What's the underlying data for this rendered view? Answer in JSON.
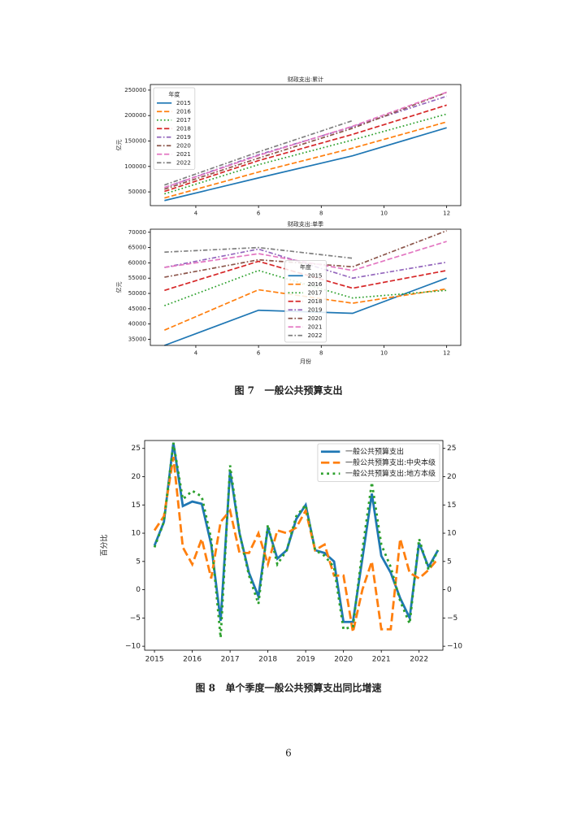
{
  "chart_data": [
    {
      "type": "line",
      "title": "财政支出:累计",
      "ylabel": "亿元",
      "legend_title": "年度",
      "legend": "upper left",
      "x": [
        3,
        6,
        9,
        12
      ],
      "xlim": [
        2.55,
        12.45
      ],
      "xticks": [
        4,
        6,
        8,
        10,
        12
      ],
      "ylim": [
        23000,
        261000
      ],
      "yticks": [
        50000,
        100000,
        150000,
        200000,
        250000
      ],
      "series": [
        {
          "name": "2015",
          "color": "#1f77b4",
          "linestyle": "solid",
          "values": [
            33000,
            77500,
            121000,
            176000
          ]
        },
        {
          "name": "2016",
          "color": "#ff7f0e",
          "linestyle": "dashed",
          "values": [
            38000,
            89000,
            136000,
            187500
          ]
        },
        {
          "name": "2017",
          "color": "#2ca02c",
          "linestyle": "dotted",
          "values": [
            46000,
            103500,
            152000,
            203000
          ]
        },
        {
          "name": "2018",
          "color": "#d62728",
          "linestyle": "dashed",
          "values": [
            51000,
            111500,
            163000,
            220500
          ]
        },
        {
          "name": "2019",
          "color": "#9467bd",
          "linestyle": "dashdot",
          "values": [
            58500,
            123000,
            178000,
            238000
          ]
        },
        {
          "name": "2020",
          "color": "#8c564b",
          "linestyle": "dashdot",
          "values": [
            55300,
            116300,
            175000,
            245500
          ]
        },
        {
          "name": "2021",
          "color": "#e377c2",
          "linestyle": "dashed",
          "values": [
            58500,
            121500,
            179000,
            246000
          ]
        },
        {
          "name": "2022",
          "color": "#7f7f7f",
          "linestyle": "dashdot",
          "values": [
            63500,
            128500,
            190000,
            null
          ]
        }
      ]
    },
    {
      "type": "line",
      "title": "财政支出:单季",
      "xlabel": "月份",
      "ylabel": "亿元",
      "legend_title": "年度",
      "legend": "lower center",
      "x": [
        3,
        6,
        9,
        12
      ],
      "xlim": [
        2.55,
        12.45
      ],
      "xticks": [
        4,
        6,
        8,
        10,
        12
      ],
      "ylim": [
        33000,
        71000
      ],
      "yticks": [
        35000,
        40000,
        45000,
        50000,
        55000,
        60000,
        65000,
        70000
      ],
      "series": [
        {
          "name": "2015",
          "color": "#1f77b4",
          "linestyle": "solid",
          "values": [
            33000,
            44500,
            43500,
            55000
          ]
        },
        {
          "name": "2016",
          "color": "#ff7f0e",
          "linestyle": "dashed",
          "values": [
            38000,
            51200,
            46800,
            51500
          ]
        },
        {
          "name": "2017",
          "color": "#2ca02c",
          "linestyle": "dotted",
          "values": [
            46000,
            57500,
            48500,
            51000
          ]
        },
        {
          "name": "2018",
          "color": "#d62728",
          "linestyle": "dashed",
          "values": [
            51000,
            60500,
            51700,
            57500
          ]
        },
        {
          "name": "2019",
          "color": "#9467bd",
          "linestyle": "dashdot",
          "values": [
            58500,
            64500,
            55000,
            60200
          ]
        },
        {
          "name": "2020",
          "color": "#8c564b",
          "linestyle": "dashdot",
          "values": [
            55300,
            61000,
            58700,
            70500
          ]
        },
        {
          "name": "2021",
          "color": "#e377c2",
          "linestyle": "dashed",
          "values": [
            58500,
            63000,
            57500,
            67000
          ]
        },
        {
          "name": "2022",
          "color": "#7f7f7f",
          "linestyle": "dashdot",
          "values": [
            63500,
            65000,
            61500,
            null
          ]
        }
      ]
    },
    {
      "type": "line",
      "ylabel": "百分比",
      "legend": "upper right",
      "x": [
        2015,
        2015.25,
        2015.5,
        2015.75,
        2016,
        2016.25,
        2016.5,
        2016.75,
        2017,
        2017.25,
        2017.5,
        2017.75,
        2018,
        2018.25,
        2018.5,
        2018.75,
        2019,
        2019.25,
        2019.5,
        2019.75,
        2020,
        2020.25,
        2020.5,
        2020.75,
        2021,
        2021.25,
        2021.5,
        2021.75,
        2022,
        2022.25,
        2022.5
      ],
      "xlim": [
        2014.74,
        2022.63
      ],
      "xticks": [
        2015,
        2016,
        2017,
        2018,
        2019,
        2020,
        2021,
        2022
      ],
      "ylim": [
        -10.7,
        26.4
      ],
      "yticks": [
        {
          "value": -10,
          "label": "−10"
        },
        {
          "value": -5,
          "label": "−5"
        },
        0,
        5,
        10,
        15,
        20,
        25
      ],
      "y2lim": [
        -10.7,
        26.4
      ],
      "y2ticks": [
        {
          "value": -10,
          "label": "−10"
        },
        {
          "value": -5,
          "label": "−5"
        },
        0,
        5,
        10,
        15,
        20,
        25
      ],
      "series": [
        {
          "name": "一般公共预算支出",
          "color": "#1f77b4",
          "linestyle": "solid",
          "values": [
            7.8,
            12,
            26,
            14.8,
            15.6,
            15.2,
            8,
            -5.5,
            21,
            10,
            3,
            -1.2,
            11,
            5.5,
            7,
            12.5,
            15,
            7,
            6.5,
            5,
            -5.7,
            -5.7,
            5.5,
            17,
            6,
            3,
            -1.5,
            -5,
            8.3,
            4,
            7
          ]
        },
        {
          "name": "一般公共预算支出:中央本级",
          "color": "#ff7f0e",
          "linestyle": "dashed",
          "values": [
            10.5,
            13,
            23.5,
            7.5,
            4.5,
            9,
            2,
            12,
            14,
            6.5,
            6.5,
            10,
            4.5,
            10.5,
            10,
            11,
            14,
            7,
            8,
            2.5,
            2.5,
            -7.5,
            0,
            5,
            -7,
            -7,
            9,
            3,
            2,
            3.5,
            5.5
          ]
        },
        {
          "name": "一般公共预算支出:地方本级",
          "color": "#2ca02c",
          "linestyle": "dotted",
          "values": [
            7.5,
            12,
            26,
            16,
            17.5,
            16.5,
            9,
            -8.5,
            22,
            10,
            2.5,
            -2.5,
            11.5,
            4.5,
            7,
            13,
            15,
            7,
            6,
            4,
            -7,
            -6.5,
            7,
            19,
            8,
            4,
            -2,
            -6,
            9,
            3.5,
            7
          ]
        }
      ]
    }
  ],
  "captions": [
    "图 7   一般公共预算支出",
    "图 8   单个季度一般公共预算支出同比增速"
  ],
  "page_number": "6"
}
